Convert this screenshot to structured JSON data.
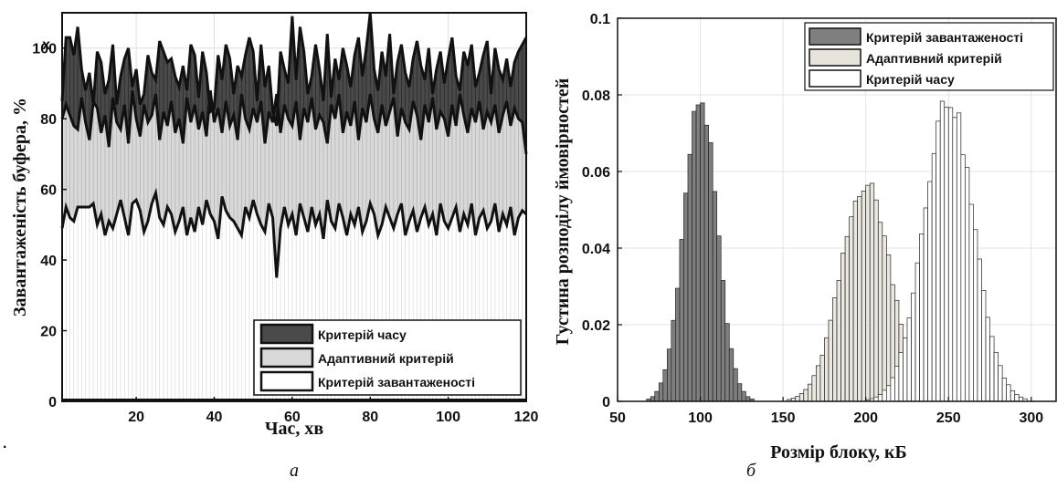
{
  "stray_mark": ".",
  "chart_data": [
    {
      "type": "area",
      "panel_label": "а",
      "xlabel": "Час, хв",
      "ylabel": "Завантаженість буфера, %",
      "xlim": [
        1,
        120
      ],
      "ylim": [
        0,
        110
      ],
      "xticks": [
        20,
        40,
        60,
        80,
        100,
        120
      ],
      "yticks": [
        0,
        20,
        40,
        60,
        80,
        100
      ],
      "top_tick_label": "x",
      "grid": true,
      "legend_position": "bottom-right",
      "colors": {
        "time": "#4a4a4a",
        "adaptive": "#d9d9d9",
        "load": "#ffffff"
      },
      "series": [
        {
          "name": "Критерій часу",
          "key": "time"
        },
        {
          "name": "Адаптивний критерій",
          "key": "adaptive"
        },
        {
          "name": "Критерій завантаженості",
          "key": "load"
        }
      ],
      "x": [
        1,
        2,
        3,
        4,
        5,
        6,
        7,
        8,
        9,
        10,
        11,
        12,
        13,
        14,
        15,
        16,
        17,
        18,
        19,
        20,
        21,
        22,
        23,
        24,
        25,
        26,
        27,
        28,
        29,
        30,
        31,
        32,
        33,
        34,
        35,
        36,
        37,
        38,
        39,
        40,
        41,
        42,
        43,
        44,
        45,
        46,
        47,
        48,
        49,
        50,
        51,
        52,
        53,
        54,
        55,
        56,
        57,
        58,
        59,
        60,
        61,
        62,
        63,
        64,
        65,
        66,
        67,
        68,
        69,
        70,
        71,
        72,
        73,
        74,
        75,
        76,
        77,
        78,
        79,
        80,
        81,
        82,
        83,
        84,
        85,
        86,
        87,
        88,
        89,
        90,
        91,
        92,
        93,
        94,
        95,
        96,
        97,
        98,
        99,
        100,
        101,
        102,
        103,
        104,
        105,
        106,
        107,
        108,
        109,
        110,
        111,
        112,
        113,
        114,
        115,
        116,
        117,
        118,
        119,
        120
      ],
      "upper": [
        85,
        103,
        103,
        98,
        106,
        94,
        88,
        93,
        84,
        99,
        96,
        87,
        91,
        101,
        84,
        92,
        97,
        100,
        89,
        94,
        84,
        87,
        98,
        93,
        91,
        102,
        99,
        96,
        97,
        92,
        89,
        95,
        88,
        101,
        98,
        86,
        99,
        93,
        82,
        83,
        98,
        91,
        101,
        97,
        87,
        95,
        92,
        98,
        103,
        99,
        85,
        101,
        89,
        95,
        82,
        78,
        99,
        94,
        90,
        109,
        91,
        106,
        99,
        87,
        92,
        101,
        94,
        85,
        104,
        86,
        97,
        91,
        100,
        95,
        89,
        98,
        103,
        92,
        100,
        110,
        94,
        88,
        99,
        92,
        104,
        87,
        96,
        101,
        93,
        89,
        97,
        102,
        95,
        91,
        100,
        87,
        94,
        99,
        90,
        97,
        103,
        92,
        88,
        99,
        95,
        101,
        89,
        93,
        98,
        102,
        87,
        100,
        94,
        91,
        97,
        89,
        96,
        99,
        101,
        103
      ],
      "mid": [
        80,
        84,
        81,
        78,
        77,
        86,
        79,
        74,
        85,
        83,
        76,
        81,
        72,
        86,
        79,
        77,
        84,
        73,
        88,
        80,
        75,
        84,
        79,
        81,
        87,
        74,
        82,
        78,
        85,
        76,
        80,
        73,
        86,
        79,
        84,
        77,
        82,
        75,
        88,
        79,
        83,
        76,
        85,
        78,
        81,
        74,
        87,
        80,
        77,
        83,
        79,
        85,
        73,
        82,
        79,
        87,
        76,
        84,
        80,
        78,
        85,
        74,
        83,
        79,
        86,
        77,
        81,
        79,
        73,
        84,
        80,
        87,
        76,
        82,
        78,
        85,
        74,
        83,
        79,
        87,
        80,
        76,
        84,
        78,
        82,
        86,
        75,
        83,
        79,
        77,
        85,
        81,
        74,
        84,
        79,
        86,
        77,
        82,
        80,
        75,
        84,
        78,
        87,
        81,
        76,
        83,
        79,
        85,
        77,
        82,
        79,
        84,
        76,
        81,
        85,
        78,
        83,
        80,
        79,
        70
      ],
      "lower": [
        49,
        55,
        52,
        51,
        55,
        55,
        55,
        55,
        56,
        50,
        53,
        47,
        51,
        49,
        53,
        57,
        52,
        47,
        56,
        57,
        54,
        48,
        51,
        56,
        59,
        52,
        50,
        55,
        53,
        48,
        51,
        55,
        47,
        52,
        48,
        55,
        50,
        57,
        53,
        51,
        46,
        58,
        54,
        52,
        51,
        49,
        47,
        55,
        52,
        57,
        53,
        50,
        48,
        56,
        52,
        35,
        49,
        55,
        50,
        53,
        47,
        56,
        52,
        48,
        55,
        50,
        53,
        46,
        57,
        51,
        49,
        56,
        52,
        47,
        53,
        50,
        55,
        48,
        51,
        56,
        53,
        47,
        50,
        55,
        52,
        49,
        53,
        56,
        47,
        51,
        54,
        48,
        52,
        55,
        50,
        53,
        47,
        56,
        51,
        49,
        52,
        55,
        48,
        53,
        50,
        56,
        47,
        52,
        54,
        49,
        51,
        56,
        48,
        53,
        50,
        55,
        47,
        52,
        54,
        53
      ]
    },
    {
      "type": "bar",
      "panel_label": "б",
      "xlabel": "Розмір блоку, кБ",
      "ylabel": "Густина розподілу ймовірностей",
      "xlim": [
        50,
        315
      ],
      "ylim": [
        0,
        0.1
      ],
      "xticks": [
        50,
        100,
        150,
        200,
        250,
        300
      ],
      "yticks": [
        0,
        0.02,
        0.04,
        0.06,
        0.08,
        0.1
      ],
      "ytick_labels": [
        "0",
        "0.02",
        "0.04",
        "0.06",
        "0.08",
        "0.1"
      ],
      "grid": true,
      "legend_position": "top-right",
      "bin_width": 2.5,
      "series": [
        {
          "name": "Критерій завантаженості",
          "color": "#7f7f7f",
          "mean": 100,
          "sd": 10,
          "peak": 0.079
        },
        {
          "name": "Адаптивний критерій",
          "color": "#e8e4dc",
          "mean": 200,
          "sd": 15,
          "peak": 0.057
        },
        {
          "name": "Критерій часу",
          "color": "#ffffff",
          "mean": 250,
          "sd": 15,
          "peak": 0.079
        }
      ]
    }
  ]
}
